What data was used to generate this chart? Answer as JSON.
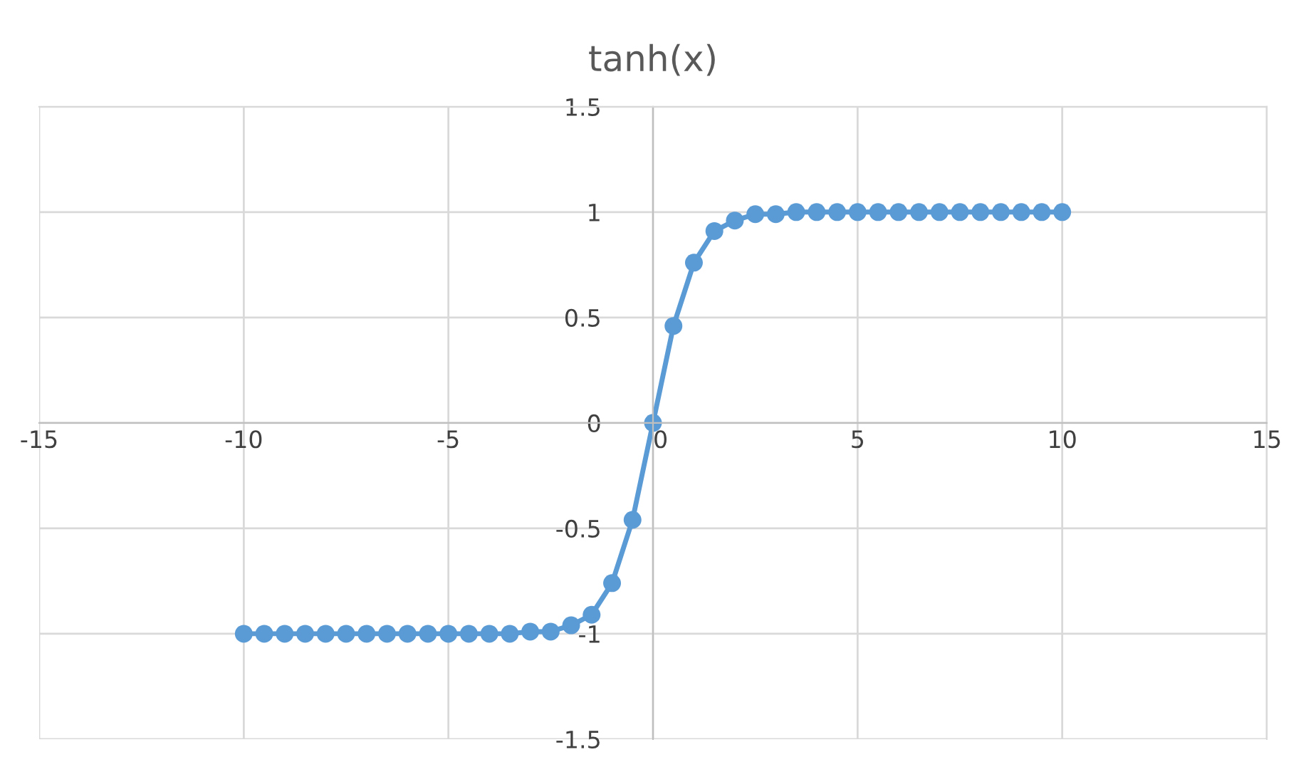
{
  "chart_data": {
    "type": "line",
    "title": "tanh(x)",
    "x": [
      -10,
      -9.5,
      -9,
      -8.5,
      -8,
      -7.5,
      -7,
      -6.5,
      -6,
      -5.5,
      -5,
      -4.5,
      -4,
      -3.5,
      -3,
      -2.5,
      -2,
      -1.5,
      -1,
      -0.5,
      0,
      0.5,
      1,
      1.5,
      2,
      2.5,
      3,
      3.5,
      4,
      4.5,
      5,
      5.5,
      6,
      6.5,
      7,
      7.5,
      8,
      8.5,
      9,
      9.5,
      10
    ],
    "series": [
      {
        "color": "#5b9bd5",
        "values": [
          -1,
          -1,
          -1,
          -1,
          -1,
          -1,
          -1,
          -1,
          -1,
          -1,
          -1,
          -1,
          -1,
          -1,
          -0.99,
          -0.99,
          -0.96,
          -0.91,
          -0.76,
          -0.46,
          0,
          0.46,
          0.76,
          0.91,
          0.96,
          0.99,
          0.99,
          1,
          1,
          1,
          1,
          1,
          1,
          1,
          1,
          1,
          1,
          1,
          1,
          1,
          1
        ]
      }
    ],
    "xlim": [
      -15,
      15
    ],
    "xticks": [
      -15,
      -10,
      -5,
      0,
      5,
      10,
      15
    ],
    "ylim": [
      -1.5,
      1.5
    ],
    "yticks": [
      -1.5,
      -1,
      -0.5,
      0,
      0.5,
      1,
      1.5
    ],
    "grid": true,
    "marker": "circle",
    "line_style": "solid"
  }
}
